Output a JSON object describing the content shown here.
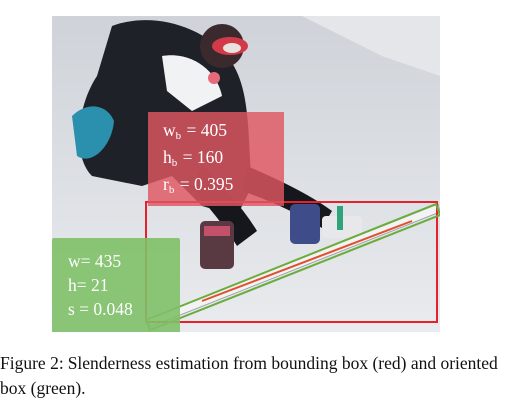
{
  "figure": {
    "red_label": {
      "w_var": "w",
      "w_sub": "b",
      "w_value": "= 405",
      "h_var": "h",
      "h_sub": "b",
      "h_value": "= 160",
      "r_var": "r",
      "r_sub": "b",
      "r_value": "= 0.395"
    },
    "green_label": {
      "w_line": "w= 435",
      "h_line": "h= 21",
      "s_line": "s = 0.048"
    },
    "colors": {
      "bounding_box": "#e8202a",
      "oriented_box": "#6aad3c"
    }
  },
  "caption": {
    "number": "Figure 2:",
    "text": "Slenderness estimation from bounding box (red) and oriented box (green)."
  }
}
